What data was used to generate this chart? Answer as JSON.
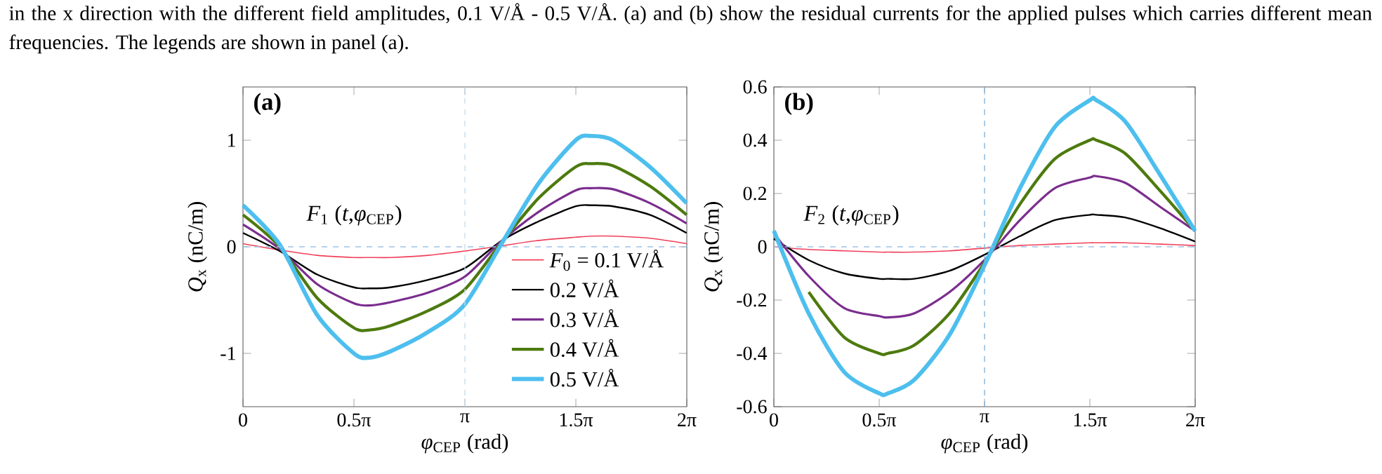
{
  "chart_data": [
    {
      "type": "line",
      "xlabel": "*φ*$_{CEP}$ (rad)",
      "ylabel": "*Q*$_{x}$ (nC/m)",
      "annotations": [
        "in the x direction with the different field amplitudes, 0.1 V/Å - 0.5 V/Å. (a) and (b) show the residual currents for the applied pulses which carries different mean frequencies. The legends are shown in panel (a).",
        "(a)",
        "*F*$_{1}$ (*t*,*φ*$_{CEP}$)"
      ],
      "x": [
        0,
        0.52,
        1.05,
        1.57,
        1.79,
        2.09,
        2.62,
        3.14,
        3.67,
        4.19,
        4.71,
        4.93,
        5.24,
        5.76,
        6.28
      ],
      "series": [
        {
          "name": "*F*$_{0}$ = 0.1 V/Å",
          "color": "#f0405a",
          "values": [
            0.03,
            -0.03,
            -0.08,
            -0.1,
            -0.1,
            -0.1,
            -0.08,
            -0.04,
            0.01,
            0.06,
            0.09,
            0.1,
            0.1,
            0.08,
            0.03
          ]
        },
        {
          "name": "0.2 V/Å",
          "color": "#000000",
          "values": [
            0.13,
            -0.04,
            -0.26,
            -0.38,
            -0.39,
            -0.38,
            -0.31,
            -0.2,
            0.06,
            0.24,
            0.38,
            0.39,
            0.38,
            0.3,
            0.13
          ]
        },
        {
          "name": "0.3 V/Å",
          "color": "#7b2d8e",
          "values": [
            0.21,
            -0.02,
            -0.35,
            -0.53,
            -0.55,
            -0.52,
            -0.43,
            -0.28,
            0.06,
            0.33,
            0.53,
            0.55,
            0.54,
            0.41,
            0.22
          ]
        },
        {
          "name": "0.4 V/Å",
          "color": "#4d7a0e",
          "values": [
            0.3,
            0.0,
            -0.48,
            -0.76,
            -0.78,
            -0.74,
            -0.6,
            -0.4,
            0.05,
            0.46,
            0.75,
            0.78,
            0.76,
            0.57,
            0.3
          ]
        },
        {
          "name": "0.5 V/Å",
          "color": "#4dbfee",
          "values": [
            0.39,
            0.02,
            -0.64,
            -1.0,
            -1.04,
            -0.98,
            -0.8,
            -0.54,
            0.04,
            0.6,
            1.0,
            1.04,
            1.0,
            0.75,
            0.41
          ]
        }
      ],
      "xlim": [
        0,
        6.2832
      ],
      "ylim": [
        -1.5,
        1.5
      ],
      "xticks": [
        {
          "value": 0,
          "label": "0"
        },
        {
          "value": 1.5708,
          "label": "0.5π"
        },
        {
          "value": 3.1416,
          "label": "π"
        },
        {
          "value": 4.7124,
          "label": "1.5π"
        },
        {
          "value": 6.2832,
          "label": "2π"
        }
      ],
      "yticks": [
        -1,
        0,
        1
      ],
      "ref_lines": [
        {
          "axis": "y",
          "value": 0,
          "color": "#9dc3e6",
          "line_style": "dashed"
        },
        {
          "axis": "x",
          "value": 3.1416,
          "color": "#c5dcef",
          "line_style": "dashed"
        }
      ],
      "legend": "bottom right"
    },
    {
      "type": "line",
      "xlabel": "*φ*$_{CEP}$ (rad)",
      "ylabel": "*Q*$_{x}$ (nC/m)",
      "annotations": [
        "(b)",
        "*F*$_{2}$ (*t*,*φ*$_{CEP}$)"
      ],
      "x": [
        0,
        0.52,
        1.05,
        1.57,
        1.7,
        2.09,
        2.62,
        3.14,
        3.67,
        4.19,
        4.71,
        4.81,
        5.24,
        5.76,
        6.28
      ],
      "series": [
        {
          "color": "#f0405a",
          "values": [
            0.0,
            -0.01,
            -0.015,
            -0.02,
            -0.02,
            -0.02,
            -0.015,
            -0.005,
            0.005,
            0.01,
            0.015,
            0.015,
            0.015,
            0.01,
            0.005
          ]
        },
        {
          "color": "#000000",
          "values": [
            0.03,
            -0.05,
            -0.1,
            -0.12,
            -0.12,
            -0.12,
            -0.09,
            -0.03,
            0.04,
            0.1,
            0.12,
            0.12,
            0.11,
            0.07,
            0.02
          ]
        },
        {
          "color": "#7b2d8e",
          "values": [
            0.05,
            -0.11,
            -0.23,
            -0.26,
            -0.265,
            -0.25,
            -0.17,
            -0.05,
            0.1,
            0.22,
            0.26,
            0.265,
            0.24,
            0.15,
            0.06
          ]
        },
        {
          "color": "#4d7a0e",
          "values": [
            null,
            -0.17,
            -0.34,
            -0.4,
            -0.4,
            -0.37,
            -0.25,
            -0.06,
            0.16,
            0.33,
            0.4,
            0.4,
            0.35,
            0.21,
            0.06
          ]
        },
        {
          "color": "#4dbfee",
          "values": [
            0.06,
            -0.25,
            -0.47,
            -0.55,
            -0.55,
            -0.5,
            -0.33,
            -0.07,
            0.22,
            0.45,
            0.55,
            0.55,
            0.47,
            0.27,
            0.06
          ]
        }
      ],
      "xlim": [
        0,
        6.2832
      ],
      "ylim": [
        -0.6,
        0.6
      ],
      "xticks": [
        {
          "value": 0,
          "label": "0"
        },
        {
          "value": 1.5708,
          "label": "0.5π"
        },
        {
          "value": 3.1416,
          "label": "π"
        },
        {
          "value": 4.7124,
          "label": "1.5π"
        },
        {
          "value": 6.2832,
          "label": "2π"
        }
      ],
      "yticks": [
        -0.6,
        -0.4,
        -0.2,
        0,
        0.2,
        0.4,
        0.6
      ],
      "ref_lines": [
        {
          "axis": "y",
          "value": 0,
          "color": "#9dc3e6",
          "line_style": "dashed"
        },
        {
          "axis": "x",
          "value": 3.1416,
          "color": "#7fb2dc",
          "line_style": "dashed"
        }
      ]
    }
  ]
}
